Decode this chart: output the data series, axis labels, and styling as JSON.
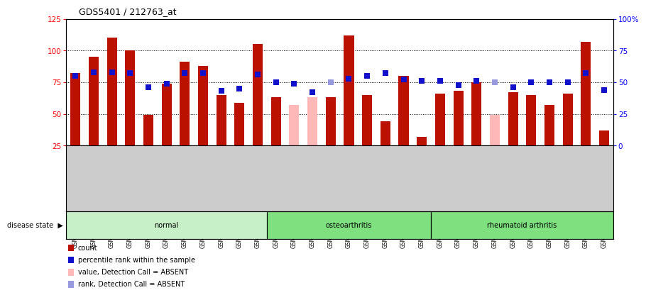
{
  "title": "GDS5401 / 212763_at",
  "samples": [
    "GSM1332201",
    "GSM1332202",
    "GSM1332203",
    "GSM1332204",
    "GSM1332205",
    "GSM1332206",
    "GSM1332207",
    "GSM1332208",
    "GSM1332209",
    "GSM1332210",
    "GSM1332211",
    "GSM1332212",
    "GSM1332213",
    "GSM1332214",
    "GSM1332215",
    "GSM1332216",
    "GSM1332217",
    "GSM1332218",
    "GSM1332219",
    "GSM1332220",
    "GSM1332221",
    "GSM1332222",
    "GSM1332223",
    "GSM1332224",
    "GSM1332225",
    "GSM1332226",
    "GSM1332227",
    "GSM1332228",
    "GSM1332229",
    "GSM1332230"
  ],
  "counts": [
    82,
    95,
    110,
    100,
    49,
    74,
    91,
    88,
    65,
    59,
    105,
    63,
    57,
    63,
    63,
    112,
    65,
    44,
    80,
    32,
    66,
    68,
    75,
    49,
    67,
    65,
    57,
    66,
    107,
    37
  ],
  "percentile": [
    55,
    58,
    58,
    57,
    46,
    49,
    57,
    57,
    43,
    45,
    56,
    50,
    49,
    42,
    50,
    53,
    55,
    57,
    52,
    51,
    51,
    48,
    51,
    50,
    46,
    50,
    50,
    50,
    57,
    44
  ],
  "absent_bar": [
    false,
    false,
    false,
    false,
    false,
    false,
    false,
    false,
    false,
    false,
    false,
    false,
    true,
    true,
    false,
    false,
    false,
    false,
    false,
    false,
    false,
    false,
    false,
    true,
    false,
    false,
    false,
    false,
    false,
    false
  ],
  "absent_rank": [
    false,
    false,
    false,
    false,
    false,
    false,
    false,
    false,
    false,
    false,
    false,
    false,
    false,
    false,
    true,
    false,
    false,
    false,
    false,
    false,
    false,
    false,
    false,
    true,
    false,
    false,
    false,
    false,
    false,
    false
  ],
  "groups": [
    {
      "label": "normal",
      "start": 0,
      "end": 10,
      "color": "#c8f0c8"
    },
    {
      "label": "osteoarthritis",
      "start": 11,
      "end": 19,
      "color": "#7ee07e"
    },
    {
      "label": "rheumatoid arthritis",
      "start": 20,
      "end": 29,
      "color": "#7ee07e"
    }
  ],
  "bar_color_present": "#bb1100",
  "bar_color_absent": "#ffb8b8",
  "rank_color_present": "#1111cc",
  "rank_color_absent": "#9999dd",
  "ylim_left": [
    25,
    125
  ],
  "ylim_right": [
    0,
    100
  ],
  "yticks_left": [
    25,
    50,
    75,
    100,
    125
  ],
  "yticks_right": [
    0,
    25,
    50,
    75,
    100
  ],
  "ytick_labels_right": [
    "0",
    "25",
    "50",
    "75",
    "100%"
  ],
  "bar_width": 0.55,
  "rank_marker_size": 30,
  "disease_state_label": "disease state",
  "legend_items": [
    {
      "label": "count",
      "color": "#bb1100"
    },
    {
      "label": "percentile rank within the sample",
      "color": "#1111cc"
    },
    {
      "label": "value, Detection Call = ABSENT",
      "color": "#ffb8b8"
    },
    {
      "label": "rank, Detection Call = ABSENT",
      "color": "#9999dd"
    }
  ],
  "background_color": "#ffffff",
  "label_area_color": "#cccccc"
}
